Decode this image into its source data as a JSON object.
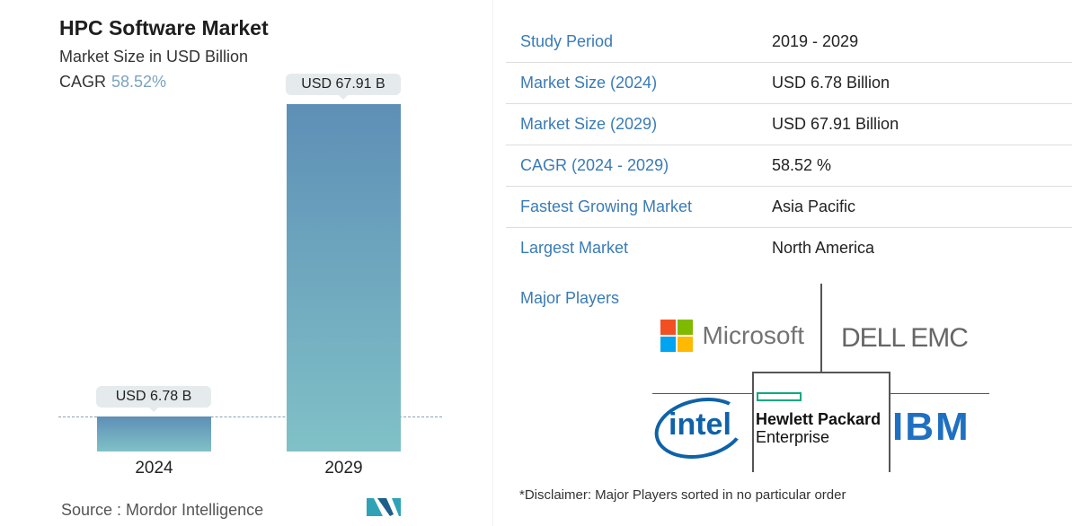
{
  "header": {
    "title": "HPC Software Market",
    "subtitle": "Market Size in USD Billion",
    "cagr_label": "CAGR",
    "cagr_value": "58.52%"
  },
  "chart_data": {
    "type": "bar",
    "categories": [
      "2024",
      "2029"
    ],
    "values": [
      6.78,
      67.91
    ],
    "data_labels": [
      "USD 6.78 B",
      "USD 67.91 B"
    ],
    "title": "HPC Software Market",
    "ylabel": "Market Size in USD Billion",
    "grid": false,
    "colors": [
      "#5e8fb6",
      "#80c1c7"
    ]
  },
  "source": "Source :  Mordor Intelligence",
  "stats": [
    {
      "label": "Study Period",
      "value": "2019 - 2029"
    },
    {
      "label": "Market Size (2024)",
      "value": "USD 6.78 Billion"
    },
    {
      "label": "Market Size (2029)",
      "value": "USD 67.91 Billion"
    },
    {
      "label": "CAGR (2024 - 2029)",
      "value": "58.52 %"
    },
    {
      "label": "Fastest Growing Market",
      "value": "Asia Pacific"
    },
    {
      "label": "Largest Market",
      "value": "North America"
    }
  ],
  "major_players": {
    "label": "Major Players",
    "players": [
      "Microsoft",
      "DELL EMC",
      "Hewlett Packard Enterprise",
      "intel",
      "IBM"
    ],
    "hpe_line1": "Hewlett Packard",
    "hpe_line2": "Enterprise"
  },
  "disclaimer": "*Disclaimer: Major Players sorted in no particular order"
}
